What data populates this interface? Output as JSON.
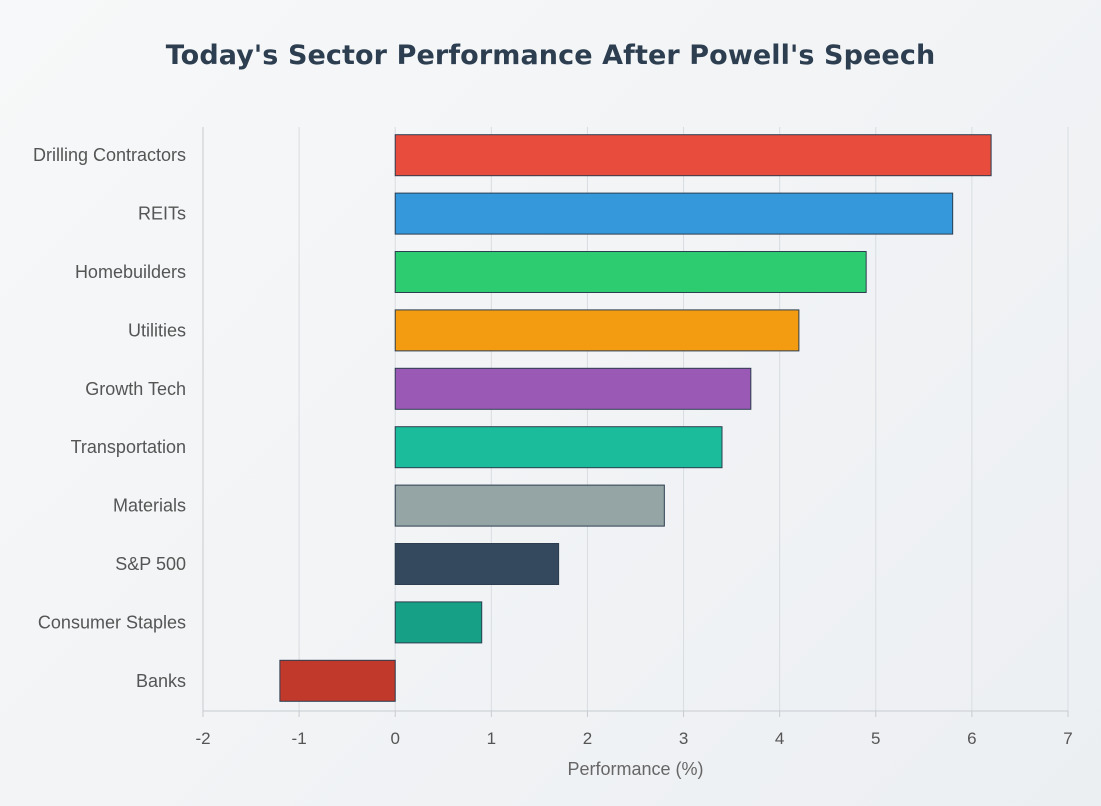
{
  "chart_data": {
    "type": "bar",
    "orientation": "horizontal",
    "title": "Today's Sector Performance After Powell's Speech",
    "xlabel": "Performance (%)",
    "ylabel": "",
    "xlim": [
      -2,
      7
    ],
    "xticks": [
      "-2",
      "-1",
      "0",
      "1",
      "2",
      "3",
      "4",
      "5",
      "6",
      "7"
    ],
    "grid": true,
    "categories": [
      "Drilling Contractors",
      "REITs",
      "Homebuilders",
      "Utilities",
      "Growth Tech",
      "Transportation",
      "Materials",
      "S&P 500",
      "Consumer Staples",
      "Banks"
    ],
    "values": [
      6.2,
      5.8,
      4.9,
      4.2,
      3.7,
      3.4,
      2.8,
      1.7,
      0.9,
      -1.2
    ],
    "colors": [
      "#e74c3c",
      "#3498db",
      "#2ecc71",
      "#f39c12",
      "#9b59b6",
      "#1abc9c",
      "#95a5a6",
      "#34495e",
      "#16a085",
      "#c0392b"
    ]
  }
}
